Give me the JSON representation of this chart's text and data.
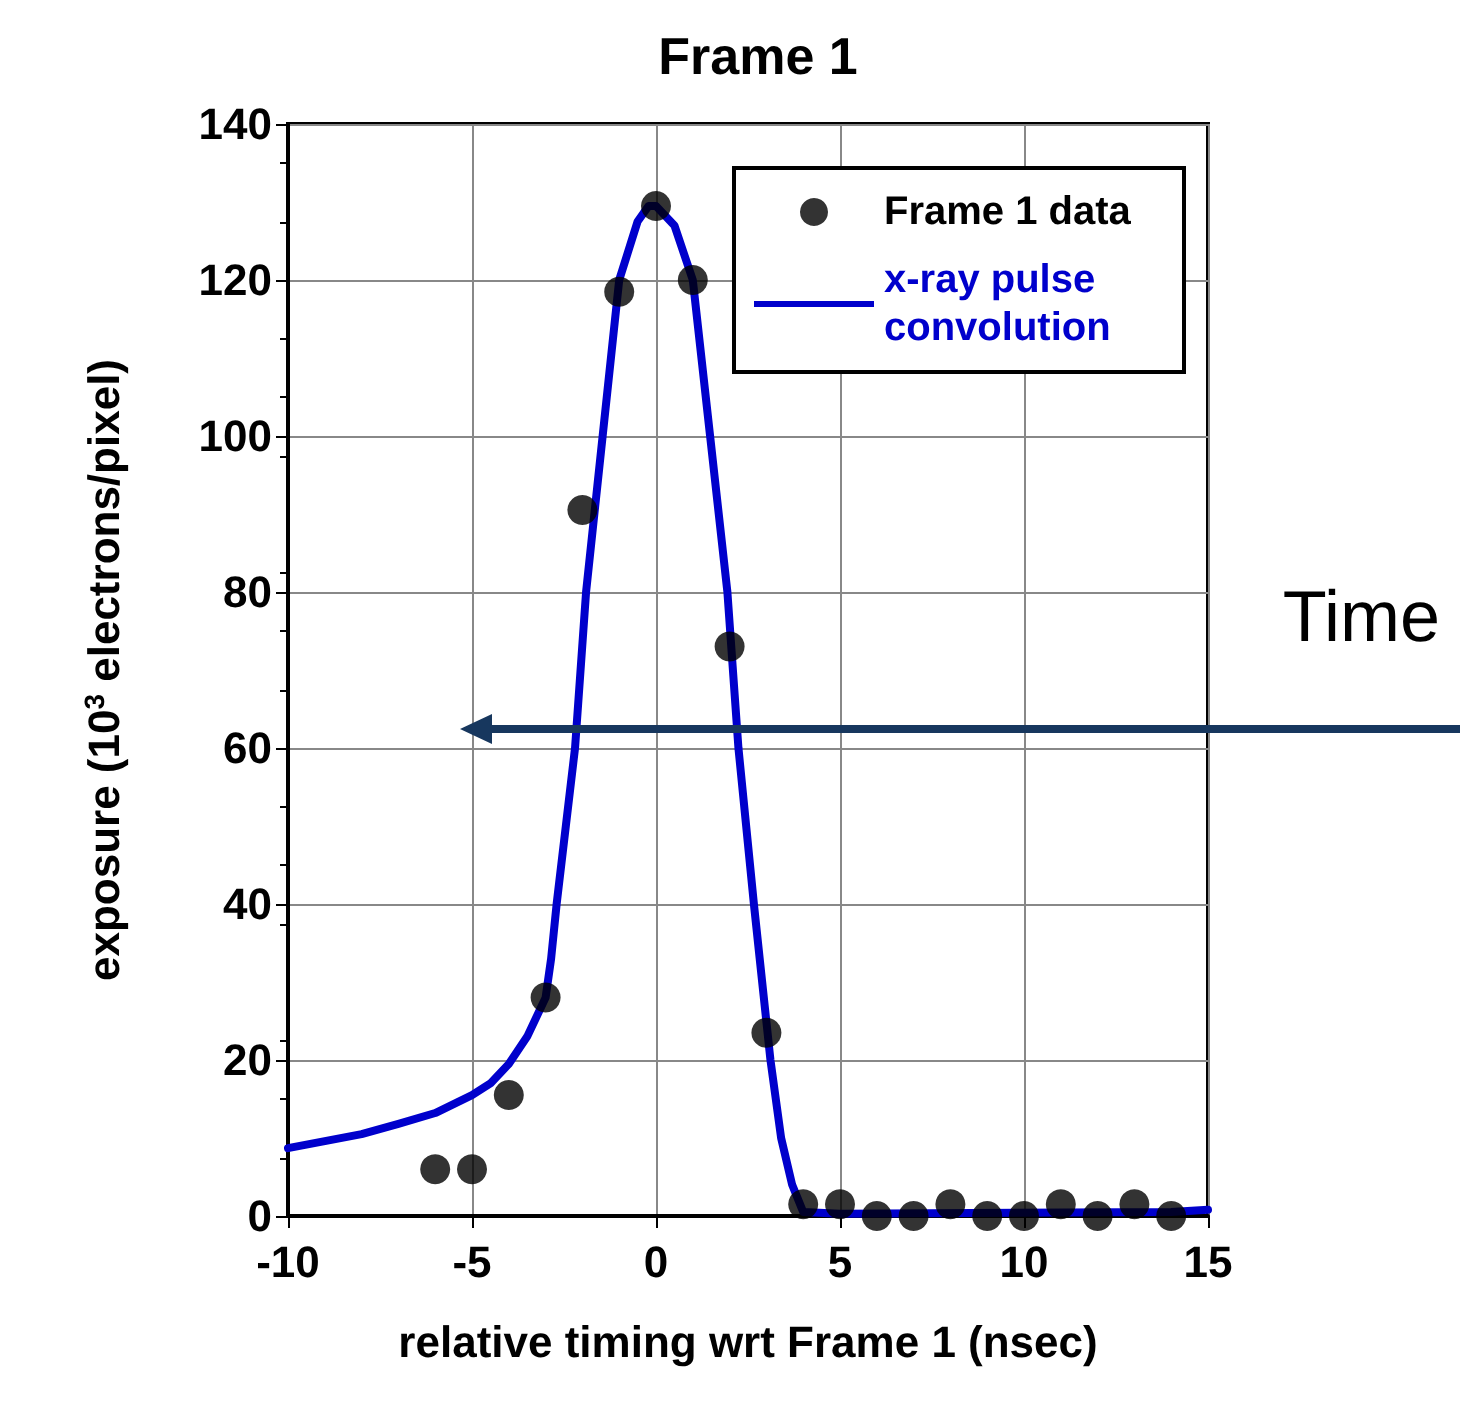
{
  "chart_data": {
    "type": "scatter",
    "title": "Frame 1",
    "xlabel": "relative timing wrt Frame 1 (nsec)",
    "ylabel": "exposure (10$^{3}$ electrons/pixel)",
    "annotations": [
      "Time"
    ],
    "series": [
      {
        "name": "Frame 1 data",
        "color": "#000000",
        "marker": "circle",
        "x": [
          -6,
          -5,
          -4,
          -3,
          -2,
          -1,
          0,
          1,
          2,
          3,
          4,
          5,
          6,
          7,
          8,
          9,
          10,
          11,
          12,
          13,
          14
        ],
        "values": [
          6,
          6,
          15.5,
          28,
          90.5,
          118.5,
          129.5,
          120,
          73,
          23.5,
          1.5,
          1.5,
          0,
          0,
          1.5,
          0,
          0,
          1.5,
          0,
          1.5,
          0
        ]
      },
      {
        "name": "x-ray pulse convolution",
        "type": "line",
        "color": "#0000cc",
        "marker": "none",
        "line_style": "solid",
        "x": [
          -10,
          -8,
          -7,
          -6,
          -5,
          -4.5,
          -4,
          -3.5,
          -3,
          -2.85,
          -2.7,
          -2.45,
          -2.2,
          -1.9,
          -1.45,
          -1,
          -0.5,
          -0.2,
          0,
          0.5,
          1,
          1.47,
          1.94,
          2.24,
          2.66,
          3.11,
          3.4,
          3.7,
          4,
          5,
          14,
          15
        ],
        "values": [
          8.7,
          10.5,
          11.8,
          13.2,
          15.5,
          17,
          19.5,
          23,
          28,
          33,
          40,
          50,
          60,
          80,
          100,
          120,
          127.5,
          129.5,
          129.5,
          127,
          120,
          100,
          80,
          60,
          40,
          20,
          10,
          4,
          0.5,
          0.3,
          0.5,
          0.8
        ]
      }
    ],
    "xlim": [
      -10,
      15
    ],
    "xticks": [
      -10,
      -5,
      0,
      5,
      10,
      15
    ],
    "ylim": [
      0,
      140
    ],
    "yticks": [
      0,
      20,
      40,
      60,
      80,
      100,
      120,
      140
    ],
    "grid": true,
    "legend": "top right"
  }
}
